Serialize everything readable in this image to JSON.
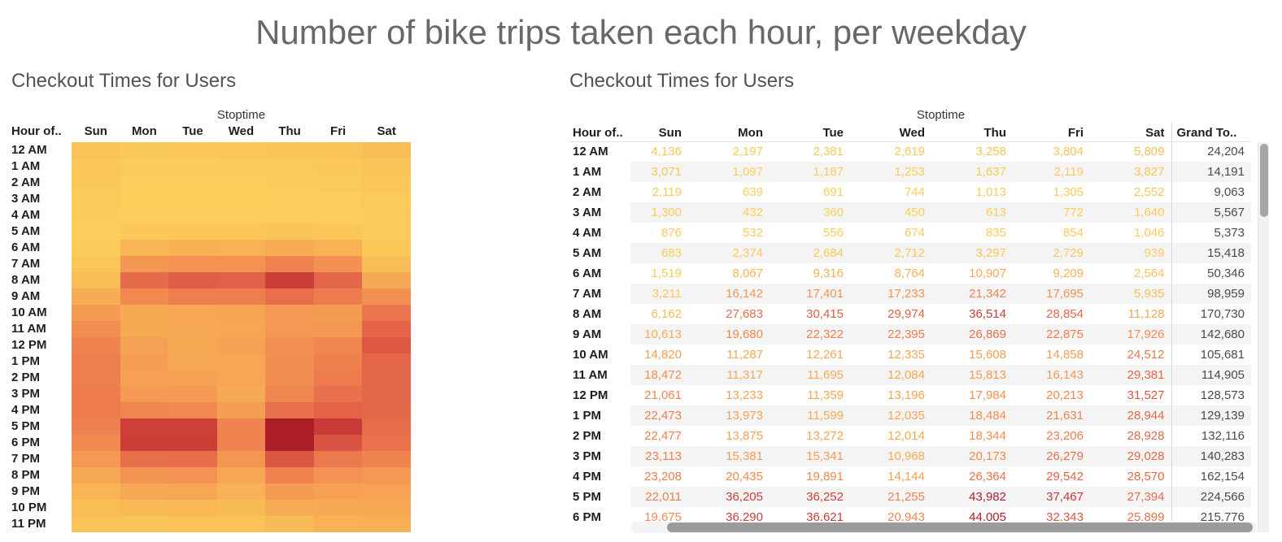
{
  "page_title": "Number of bike trips taken each hour, per weekday",
  "heatmap_panel": {
    "title": "Checkout Times for Users",
    "top_axis_label": "Stoptime",
    "corner_label": "Hour of.."
  },
  "table_panel": {
    "title": "Checkout Times for Users",
    "top_axis_label": "Stoptime",
    "corner_label": "Hour of..",
    "grand_total_header": "Grand To.."
  },
  "colors": {
    "title_text": "#686868",
    "panel_title_text": "#525252",
    "header_text": "#1e1e1e",
    "grand_total_text": "#4a4a4a",
    "row_band": "#f4f4f4",
    "scrollbar_thumb": "#9b9b9b",
    "scrollbar_track": "#f1f1f1",
    "heat_scale": [
      {
        "t": 0.0,
        "hex": "#FBCE5A"
      },
      {
        "t": 0.1,
        "hex": "#FAC157"
      },
      {
        "t": 0.34,
        "hex": "#F59B53"
      },
      {
        "t": 0.5,
        "hex": "#EF7F4F"
      },
      {
        "t": 0.66,
        "hex": "#E4654A"
      },
      {
        "t": 0.82,
        "hex": "#CC4038"
      },
      {
        "t": 1.0,
        "hex": "#AC1F28"
      }
    ]
  },
  "chart_data": [
    {
      "type": "heatmap",
      "title": "Checkout Times for Users",
      "xlabel": "Stoptime",
      "ylabel": "Hour of..",
      "columns": [
        "Sun",
        "Mon",
        "Tue",
        "Wed",
        "Thu",
        "Fri",
        "Sat"
      ],
      "rows": [
        "12 AM",
        "1 AM",
        "2 AM",
        "3 AM",
        "4 AM",
        "5 AM",
        "6 AM",
        "7 AM",
        "8 AM",
        "9 AM",
        "10 AM",
        "11 AM",
        "12 PM",
        "1 PM",
        "2 PM",
        "3 PM",
        "4 PM",
        "5 PM",
        "6 PM",
        "7 PM",
        "8 PM",
        "9 PM",
        "10 PM",
        "11 PM"
      ],
      "values": [
        [
          4136,
          2197,
          2381,
          2619,
          3258,
          3804,
          5809
        ],
        [
          3071,
          1097,
          1187,
          1253,
          1637,
          2119,
          3827
        ],
        [
          2119,
          639,
          691,
          744,
          1013,
          1305,
          2552
        ],
        [
          1300,
          432,
          360,
          450,
          613,
          772,
          1640
        ],
        [
          876,
          532,
          556,
          674,
          835,
          854,
          1046
        ],
        [
          683,
          2374,
          2684,
          2712,
          3297,
          2729,
          939
        ],
        [
          1519,
          8067,
          9316,
          8764,
          10907,
          9209,
          2564
        ],
        [
          3211,
          16142,
          17401,
          17233,
          21342,
          17695,
          5935
        ],
        [
          6162,
          27683,
          30415,
          29974,
          36514,
          28854,
          11128
        ],
        [
          10613,
          19680,
          22322,
          22395,
          26869,
          22875,
          17926
        ],
        [
          14820,
          11287,
          12261,
          12335,
          15608,
          14858,
          24512
        ],
        [
          18472,
          11317,
          11695,
          12084,
          15813,
          16143,
          29381
        ],
        [
          21061,
          13233,
          11359,
          13196,
          17984,
          20213,
          31527
        ],
        [
          22473,
          13973,
          11599,
          12035,
          18484,
          21631,
          28944
        ],
        [
          22477,
          13875,
          13272,
          12014,
          18344,
          23206,
          28928
        ],
        [
          23113,
          15381,
          15341,
          10968,
          20173,
          26279,
          29028
        ],
        [
          23208,
          20435,
          19891,
          14144,
          26364,
          29542,
          28570
        ],
        [
          22011,
          36205,
          36252,
          21255,
          43982,
          37467,
          27394
        ],
        [
          19675,
          36290,
          36621,
          20943,
          44005,
          32343,
          25899
        ],
        [
          16000,
          26500,
          27000,
          16500,
          32000,
          24000,
          21000
        ],
        [
          11500,
          17000,
          17500,
          12000,
          21500,
          17500,
          16000
        ],
        [
          8000,
          11500,
          12000,
          9000,
          15000,
          13500,
          13000
        ],
        [
          5500,
          7000,
          7500,
          6500,
          10500,
          11000,
          11500
        ],
        [
          4000,
          4200,
          4500,
          4300,
          6500,
          9000,
          9500
        ]
      ],
      "value_min": 360,
      "value_max": 44005,
      "estimated_rows": [
        "7 PM",
        "8 PM",
        "9 PM",
        "10 PM",
        "11 PM"
      ]
    },
    {
      "type": "table",
      "title": "Checkout Times for Users",
      "group_header": "Stoptime",
      "columns": [
        "Hour of..",
        "Sun",
        "Mon",
        "Tue",
        "Wed",
        "Thu",
        "Fri",
        "Sat",
        "Grand To.."
      ],
      "row_headers": [
        "12 AM",
        "1 AM",
        "2 AM",
        "3 AM",
        "4 AM",
        "5 AM",
        "6 AM",
        "7 AM",
        "8 AM",
        "9 AM",
        "10 AM",
        "11 AM",
        "12 PM",
        "1 PM",
        "2 PM",
        "3 PM",
        "4 PM",
        "5 PM",
        "6 PM"
      ],
      "partially_visible_row": "6 PM",
      "values": [
        [
          4136,
          2197,
          2381,
          2619,
          3258,
          3804,
          5809
        ],
        [
          3071,
          1097,
          1187,
          1253,
          1637,
          2119,
          3827
        ],
        [
          2119,
          639,
          691,
          744,
          1013,
          1305,
          2552
        ],
        [
          1300,
          432,
          360,
          450,
          613,
          772,
          1640
        ],
        [
          876,
          532,
          556,
          674,
          835,
          854,
          1046
        ],
        [
          683,
          2374,
          2684,
          2712,
          3297,
          2729,
          939
        ],
        [
          1519,
          8067,
          9316,
          8764,
          10907,
          9209,
          2564
        ],
        [
          3211,
          16142,
          17401,
          17233,
          21342,
          17695,
          5935
        ],
        [
          6162,
          27683,
          30415,
          29974,
          36514,
          28854,
          11128
        ],
        [
          10613,
          19680,
          22322,
          22395,
          26869,
          22875,
          17926
        ],
        [
          14820,
          11287,
          12261,
          12335,
          15608,
          14858,
          24512
        ],
        [
          18472,
          11317,
          11695,
          12084,
          15813,
          16143,
          29381
        ],
        [
          21061,
          13233,
          11359,
          13196,
          17984,
          20213,
          31527
        ],
        [
          22473,
          13973,
          11599,
          12035,
          18484,
          21631,
          28944
        ],
        [
          22477,
          13875,
          13272,
          12014,
          18344,
          23206,
          28928
        ],
        [
          23113,
          15381,
          15341,
          10968,
          20173,
          26279,
          29028
        ],
        [
          23208,
          20435,
          19891,
          14144,
          26364,
          29542,
          28570
        ],
        [
          22011,
          36205,
          36252,
          21255,
          43982,
          37467,
          27394
        ],
        [
          19675,
          36290,
          36621,
          20943,
          44005,
          32343,
          25899
        ]
      ],
      "grand_totals": [
        24204,
        14191,
        9063,
        5567,
        5373,
        15418,
        50346,
        98959,
        170730,
        142680,
        105681,
        114905,
        128573,
        129139,
        132116,
        140283,
        162154,
        224566
      ],
      "partial_row_grand_total": 215776
    }
  ]
}
